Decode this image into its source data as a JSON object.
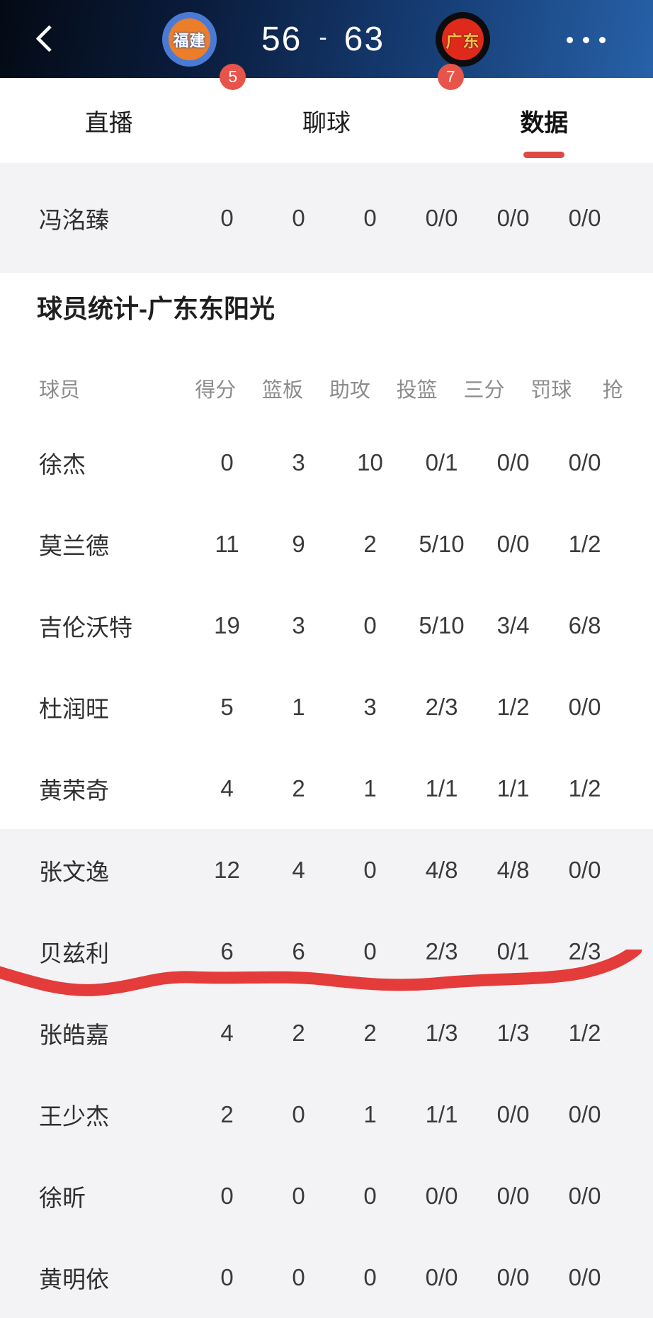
{
  "header": {
    "home_team": {
      "name": "福建"
    },
    "away_team": {
      "name": "广东"
    },
    "score": {
      "home": "56",
      "separator": "-",
      "away": "63"
    }
  },
  "tabs": [
    {
      "label": "直播",
      "badge": "5",
      "active": false
    },
    {
      "label": "聊球",
      "badge": "7",
      "active": false
    },
    {
      "label": "数据",
      "badge": "",
      "active": true
    }
  ],
  "top_row": {
    "name": "冯洺臻",
    "values": [
      "0",
      "0",
      "0",
      "0/0",
      "0/0",
      "0/0"
    ]
  },
  "section": {
    "title": "球员统计-广东东阳光",
    "columns": [
      "球员",
      "得分",
      "篮板",
      "助攻",
      "投篮",
      "三分",
      "罚球",
      "抢"
    ],
    "rows": [
      {
        "name": "徐杰",
        "values": [
          "0",
          "3",
          "10",
          "0/1",
          "0/0",
          "0/0"
        ]
      },
      {
        "name": "莫兰德",
        "values": [
          "11",
          "9",
          "2",
          "5/10",
          "0/0",
          "1/2"
        ]
      },
      {
        "name": "吉伦沃特",
        "values": [
          "19",
          "3",
          "0",
          "5/10",
          "3/4",
          "6/8"
        ]
      },
      {
        "name": "杜润旺",
        "values": [
          "5",
          "1",
          "3",
          "2/3",
          "1/2",
          "0/0"
        ]
      },
      {
        "name": "黄荣奇",
        "values": [
          "4",
          "2",
          "1",
          "1/1",
          "1/1",
          "1/2"
        ]
      },
      {
        "name": "张文逸",
        "values": [
          "12",
          "4",
          "0",
          "4/8",
          "4/8",
          "0/0"
        ]
      },
      {
        "name": "贝兹利",
        "values": [
          "6",
          "6",
          "0",
          "2/3",
          "0/1",
          "2/3"
        ]
      },
      {
        "name": "张皓嘉",
        "values": [
          "4",
          "2",
          "2",
          "1/3",
          "1/3",
          "1/2"
        ]
      },
      {
        "name": "王少杰",
        "values": [
          "2",
          "0",
          "1",
          "1/1",
          "0/0",
          "0/0"
        ]
      },
      {
        "name": "徐昕",
        "values": [
          "0",
          "0",
          "0",
          "0/0",
          "0/0",
          "0/0"
        ]
      },
      {
        "name": "黄明依",
        "values": [
          "0",
          "0",
          "0",
          "0/0",
          "0/0",
          "0/0"
        ]
      }
    ]
  },
  "annotation": {
    "type": "hand-drawn-underline",
    "under_player": "贝兹利",
    "color": "#e43b3b"
  },
  "colors": {
    "accent_red": "#dd4a43",
    "badge_red": "#e8544a",
    "marker_red": "#e43b3b",
    "header_gradient_start": "#040a14",
    "header_gradient_end": "#2761a8",
    "section_gray": "#f3f3f5",
    "home_badge_ring": "#4b7ad4",
    "home_badge_inner": "#ec7e2a",
    "away_badge_ring": "#0c0c0e",
    "away_badge_inner": "#df2a1b",
    "away_badge_text": "#f2c24a"
  }
}
